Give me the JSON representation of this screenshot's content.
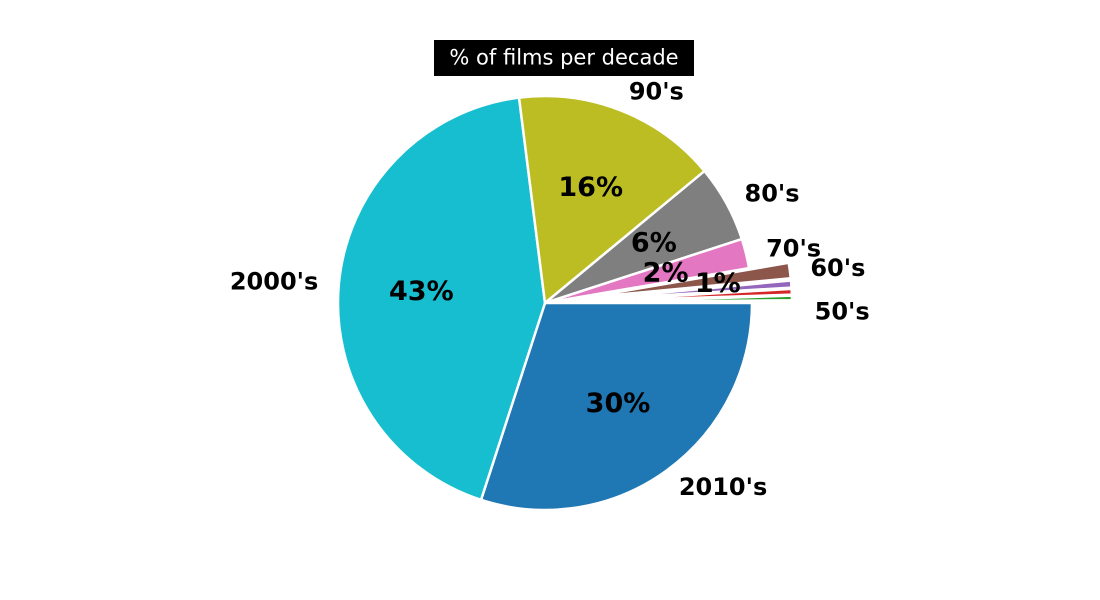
{
  "chart_data": {
    "type": "pie",
    "title": "% of films per decade",
    "start_angle_deg": 0,
    "direction": "clockwise",
    "slices": [
      {
        "label": "2010's",
        "value": 30.0,
        "pct_label": "30%",
        "color": "#1f77b4",
        "exploded": false
      },
      {
        "label": "2000's",
        "value": 43.0,
        "pct_label": "43%",
        "color": "#17becf",
        "exploded": false
      },
      {
        "label": "90's",
        "value": 16.0,
        "pct_label": "16%",
        "color": "#bcbd22",
        "exploded": false
      },
      {
        "label": "80's",
        "value": 6.0,
        "pct_label": "6%",
        "color": "#7f7f7f",
        "exploded": false
      },
      {
        "label": "70's",
        "value": 2.3,
        "pct_label": "2%",
        "color": "#e377c2",
        "exploded": false
      },
      {
        "label": "60's",
        "value": 1.2,
        "pct_label": "1%",
        "color": "#8c564b",
        "exploded": true
      },
      {
        "label": "",
        "value": 0.55,
        "pct_label": "",
        "color": "#9467bd",
        "exploded": true
      },
      {
        "label": "",
        "value": 0.45,
        "pct_label": "",
        "color": "#d62728",
        "exploded": true
      },
      {
        "label": "50's",
        "value": 0.35,
        "pct_label": "",
        "color": "#2ca02c",
        "exploded": true
      },
      {
        "label": "",
        "value": 0.15,
        "pct_label": "",
        "color": "#ff7f0e",
        "exploded": true
      }
    ]
  }
}
